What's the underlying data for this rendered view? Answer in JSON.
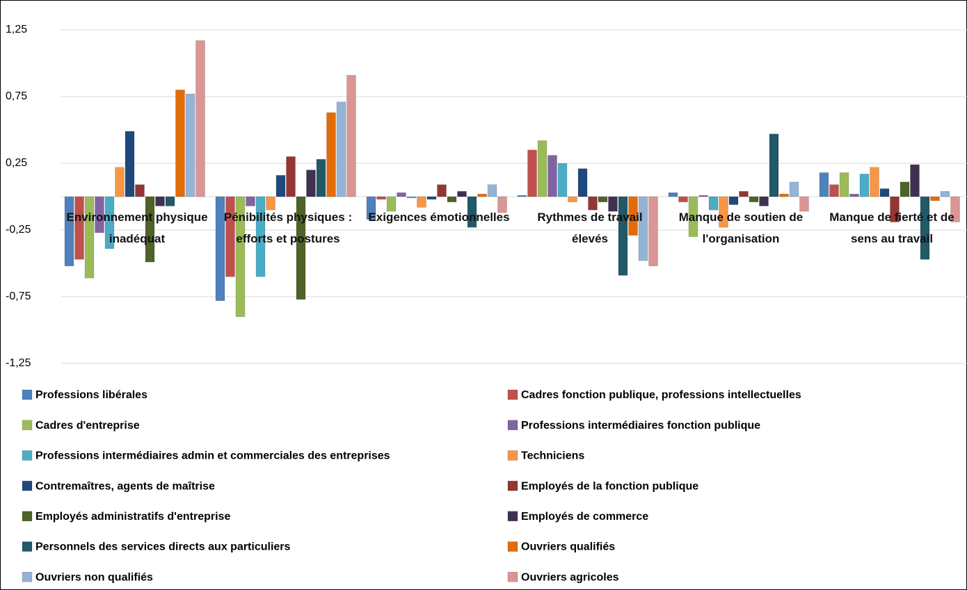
{
  "chart_data": {
    "type": "bar",
    "categories": [
      "Environnement physique inadéquat",
      "Pénibilités physiques : efforts et postures",
      "Exigences émotionnelles",
      "Rythmes de travail élevés",
      "Manque de soutien de l'organisation",
      "Manque de fierté et de sens au travail"
    ],
    "ylim": [
      -1.25,
      1.25
    ],
    "yticks": [
      {
        "value": 1.25,
        "label": "1,25"
      },
      {
        "value": 0.75,
        "label": "0,75"
      },
      {
        "value": 0.25,
        "label": "0,25"
      },
      {
        "value": -0.25,
        "label": "-0,25"
      },
      {
        "value": -0.75,
        "label": "-0,75"
      },
      {
        "value": -1.25,
        "label": "-1,25"
      }
    ],
    "grid": true,
    "series": [
      {
        "name": "Professions libérales",
        "color": "#4f81bd",
        "values": [
          -0.52,
          -0.78,
          -0.17,
          0.01,
          0.03,
          0.18
        ]
      },
      {
        "name": "Cadres fonction publique, professions intellectuelles",
        "color": "#c0504d",
        "values": [
          -0.47,
          -0.6,
          -0.02,
          0.35,
          -0.04,
          0.09
        ]
      },
      {
        "name": "Cadres d'entreprise",
        "color": "#9bbb59",
        "values": [
          -0.61,
          -0.9,
          -0.11,
          0.42,
          -0.3,
          0.18
        ]
      },
      {
        "name": "Professions intermédiaires fonction publique",
        "color": "#8064a2",
        "values": [
          -0.27,
          -0.07,
          0.03,
          0.31,
          0.01,
          0.02
        ]
      },
      {
        "name": "Professions intermédiaires admin et commerciales des entreprises",
        "color": "#4bacc6",
        "values": [
          -0.39,
          -0.6,
          -0.01,
          0.25,
          -0.1,
          0.17
        ]
      },
      {
        "name": "Techniciens",
        "color": "#f79646",
        "values": [
          0.22,
          -0.1,
          -0.08,
          -0.04,
          -0.23,
          0.22
        ]
      },
      {
        "name": "Contremaîtres, agents de maîtrise",
        "color": "#1f497d",
        "values": [
          0.49,
          0.16,
          -0.02,
          0.21,
          -0.06,
          0.06
        ]
      },
      {
        "name": "Employés de la fonction publique",
        "color": "#943634",
        "values": [
          0.09,
          0.3,
          0.09,
          -0.1,
          0.04,
          -0.19
        ]
      },
      {
        "name": "Employés administratifs d'entreprise",
        "color": "#4f6228",
        "values": [
          -0.49,
          -0.77,
          -0.04,
          -0.04,
          -0.04,
          0.11
        ]
      },
      {
        "name": "Employés de commerce",
        "color": "#3f3151",
        "values": [
          -0.07,
          0.2,
          0.04,
          -0.11,
          -0.07,
          0.24
        ]
      },
      {
        "name": "Personnels des services directs aux particuliers",
        "color": "#215968",
        "values": [
          -0.07,
          0.28,
          -0.23,
          -0.59,
          0.47,
          -0.47
        ]
      },
      {
        "name": "Ouvriers qualifiés",
        "color": "#e36c09",
        "values": [
          0.8,
          0.63,
          0.02,
          -0.29,
          0.02,
          -0.03
        ]
      },
      {
        "name": "Ouvriers non qualifiés",
        "color": "#95b3d7",
        "values": [
          0.77,
          0.71,
          0.09,
          -0.48,
          0.11,
          0.04
        ]
      },
      {
        "name": "Ouvriers agricoles",
        "color": "#d99694",
        "values": [
          1.17,
          0.91,
          -0.12,
          -0.52,
          -0.11,
          -0.19
        ]
      }
    ]
  }
}
